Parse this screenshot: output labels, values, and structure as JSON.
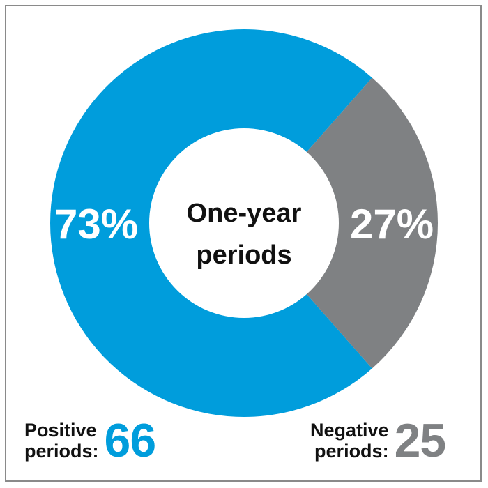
{
  "chart_data": {
    "type": "pie",
    "title": "One-year periods",
    "title_lines": [
      "One-year",
      "periods"
    ],
    "slices": [
      {
        "name": "Positive periods",
        "value": 73,
        "label": "73%",
        "count": 66,
        "color": "#009ddc"
      },
      {
        "name": "Negative periods",
        "value": 27,
        "label": "27%",
        "count": 25,
        "color": "#7f8183"
      }
    ]
  },
  "legend": {
    "positive": {
      "label_line1": "Positive",
      "label_line2": "periods:",
      "count": "66",
      "color": "#009ddc"
    },
    "negative": {
      "label_line1": "Negative",
      "label_line2": "periods:",
      "count": "25",
      "color": "#7f8183"
    }
  }
}
